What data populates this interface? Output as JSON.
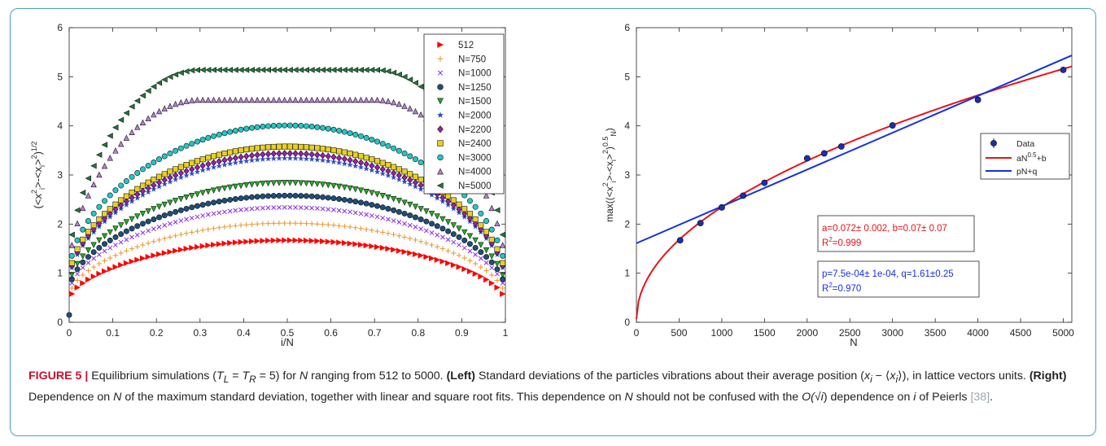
{
  "caption": {
    "figure_label": "FIGURE 5 |",
    "part1": " Equilibrium simulations (",
    "math1": "T",
    "sub1": "L",
    "eq1": " = ",
    "math2": "T",
    "sub2": "R",
    "eq2": " = 5) for ",
    "n1": "N",
    "part2": " ranging from 512 to 5000. ",
    "left_label": "(Left)",
    "part3": " Standard deviations of the particles vibrations about their average position (",
    "xi": "x",
    "i1": "i",
    "minus": " − ⟨",
    "xi2": "x",
    "i2": "i",
    "part4": "⟩), in lattice vectors units. ",
    "right_label": "(Right)",
    "part5": " Dependence on ",
    "n2": "N",
    "part6": " of the maximum standard deviation, together with linear and square root fits. This dependence on ",
    "n3": "N",
    "part7": " should not be confused with the ",
    "o": "O(√",
    "oi": "i",
    "oclose": ")",
    "part8": " dependence on ",
    "i3": "i",
    "part9": " of Peierls ",
    "ref": "[38]",
    "part10": "."
  },
  "chart_data": [
    {
      "type": "scatter",
      "xlabel": "i/N",
      "ylabel": "(<x_i^2>-<x_i>^2)^1/2",
      "xlim": [
        0,
        1
      ],
      "ylim": [
        0,
        6
      ],
      "xticks": [
        "0",
        "0.1",
        "0.2",
        "0.3",
        "0.4",
        "0.5",
        "0.6",
        "0.7",
        "0.8",
        "0.9",
        "1"
      ],
      "yticks": [
        "0",
        "1",
        "2",
        "3",
        "4",
        "5",
        "6"
      ],
      "legend_position": "top-right",
      "grid": false,
      "points_per_series": 80,
      "extra_point": {
        "x": 0.0,
        "y": 0.15
      },
      "series": [
        {
          "name": "512",
          "marker": "tri-right",
          "color": "#ff0000",
          "peak": 1.67,
          "edge": 0.4
        },
        {
          "name": "N=750",
          "marker": "plus",
          "color": "#e8962c",
          "peak": 2.02,
          "edge": 0.48
        },
        {
          "name": "N=1000",
          "marker": "cross",
          "color": "#8a2be2",
          "peak": 2.34,
          "edge": 0.55
        },
        {
          "name": "N=1250",
          "marker": "circle",
          "color": "#1d4f7a",
          "peak": 2.58,
          "edge": 0.6
        },
        {
          "name": "N=1500",
          "marker": "tri-down",
          "color": "#22b022",
          "peak": 2.84,
          "edge": 0.66
        },
        {
          "name": "N=2000",
          "marker": "star",
          "color": "#2c4dc8",
          "peak": 3.34,
          "edge": 0.75
        },
        {
          "name": "N=2200",
          "marker": "diamond",
          "color": "#9b1fb0",
          "peak": 3.44,
          "edge": 0.78
        },
        {
          "name": "N=2400",
          "marker": "square",
          "color": "#e6d21e",
          "peak": 3.58,
          "edge": 0.82
        },
        {
          "name": "N=3000",
          "marker": "circle",
          "color": "#22c7c7",
          "peak": 4.01,
          "edge": 0.92
        },
        {
          "name": "N=4000",
          "marker": "tri-up",
          "color": "#b87fd6",
          "peak": 4.53,
          "edge": 1.04
        },
        {
          "name": "N=5000",
          "marker": "tri-left",
          "color": "#1f7a3a",
          "peak": 5.14,
          "edge": 1.18
        }
      ]
    },
    {
      "type": "scatter",
      "xlabel": "N",
      "ylabel": "max((<x_i^2>-<x_i>^2)^0.5_N)",
      "xlim": [
        0,
        5100
      ],
      "ylim": [
        0,
        6
      ],
      "xticks": [
        "0",
        "500",
        "1000",
        "1500",
        "2000",
        "2500",
        "3000",
        "3500",
        "4000",
        "4500",
        "5000"
      ],
      "yticks": [
        "0",
        "1",
        "2",
        "3",
        "4",
        "5",
        "6"
      ],
      "legend_position": "upper-right",
      "grid": false,
      "data": {
        "name": "Data",
        "x": [
          512,
          750,
          1000,
          1250,
          1500,
          2000,
          2200,
          2400,
          3000,
          4000,
          5000
        ],
        "y": [
          1.67,
          2.02,
          2.34,
          2.58,
          2.84,
          3.34,
          3.44,
          3.58,
          4.01,
          4.53,
          5.14
        ],
        "color": "#1a2fb0"
      },
      "fits": [
        {
          "name": "aN^0.5+b",
          "label_main": "aN",
          "label_sup": "0.5",
          "label_rest": "+b",
          "kind": "sqrt",
          "a": 0.072,
          "b": 0.07,
          "color": "#e8141a"
        },
        {
          "name": "pN+q",
          "label_main": "pN+q",
          "kind": "linear",
          "p": 0.00075,
          "q": 1.61,
          "color": "#1530e0"
        }
      ],
      "annotations": [
        {
          "line1": "a=0.072± 0.002, b=0.07± 0.07",
          "line2_main": "R",
          "line2_sup": "2",
          "line2_rest": "=0.999",
          "color": "#e8141a"
        },
        {
          "line1": "p=7.5e-04± 1e-04, q=1.61±0.25",
          "line2_main": "R",
          "line2_sup": "2",
          "line2_rest": "=0.970",
          "color": "#1530e0"
        }
      ]
    }
  ]
}
